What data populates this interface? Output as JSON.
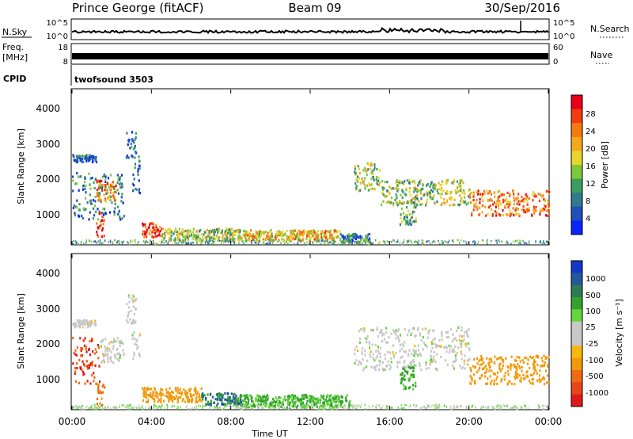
{
  "header": {
    "site": "Prince George (fitACF)",
    "beam": "Beam 09",
    "date": "30/Sep/2016"
  },
  "strips": {
    "nsky_label": "N.Sky",
    "nsky_ticks": [
      "10^5",
      "10^0"
    ],
    "nsearch_label": "N.Search",
    "nsearch_ticks": [
      "10^5",
      "10^0"
    ],
    "freq_label_line1": "Freq.",
    "freq_label_line2": "[MHz]",
    "freq_ticks": [
      "18",
      "8"
    ],
    "nave_label": "Nave",
    "nave_ticks": [
      "60",
      "0"
    ],
    "cpid_label": "CPID",
    "cpid_value": "twofsound 3503"
  },
  "axes": {
    "ylabel": "Slant Range [km]",
    "yticks": [
      "4000",
      "3000",
      "2000",
      "1000"
    ],
    "xticks": [
      "00:00",
      "04:00",
      "08:00",
      "12:00",
      "16:00",
      "20:00",
      "00:00"
    ],
    "xlabel": "Time UT"
  },
  "colorbars": {
    "power": {
      "label": "Power [dB]",
      "ticks": [
        "28",
        "24",
        "20",
        "16",
        "12",
        "8",
        "4"
      ],
      "colors": [
        "#e8001a",
        "#f03c0f",
        "#f27a0f",
        "#f4a81e",
        "#e8d52c",
        "#7ec93a",
        "#3b9e60",
        "#2f7a8e",
        "#1f4fb8",
        "#0a24ff"
      ]
    },
    "velocity": {
      "label": "Velocity [m s⁻¹]",
      "ticks": [
        "1000",
        "500",
        "100",
        "25",
        "-25",
        "-100",
        "-500",
        "-1000"
      ],
      "colors": [
        "#1537c7",
        "#23599a",
        "#2f7a52",
        "#33a22d",
        "#63d63a",
        "#c8c8c8",
        "#c8c8c8",
        "#f6b80e",
        "#f39a0b",
        "#f06a12",
        "#e8461c",
        "#e01a1a"
      ]
    }
  },
  "chart_data": [
    {
      "type": "heatmap",
      "title": "Power",
      "xlabel": "Time UT",
      "ylabel": "Slant Range [km]",
      "xlim": [
        "00:00",
        "24:00"
      ],
      "ylim": [
        180,
        4500
      ],
      "colorbar": {
        "label": "Power [dB]",
        "range": [
          0,
          30
        ]
      },
      "echo_bands": [
        {
          "t_start": 0.0,
          "t_end": 2.6,
          "range_lo": 900,
          "range_hi": 2200,
          "power_db": 8
        },
        {
          "t_start": 0.0,
          "t_end": 1.2,
          "range_lo": 2500,
          "range_hi": 2700,
          "power_db": 6
        },
        {
          "t_start": 1.2,
          "t_end": 2.2,
          "range_lo": 1400,
          "range_hi": 2000,
          "power_db": 22
        },
        {
          "t_start": 1.2,
          "t_end": 1.6,
          "range_lo": 400,
          "range_hi": 1100,
          "power_db": 28
        },
        {
          "t_start": 2.7,
          "t_end": 3.2,
          "range_lo": 2600,
          "range_hi": 3400,
          "power_db": 6
        },
        {
          "t_start": 3.0,
          "t_end": 3.4,
          "range_lo": 1600,
          "range_hi": 2700,
          "power_db": 6
        },
        {
          "t_start": 3.5,
          "t_end": 4.5,
          "range_lo": 400,
          "range_hi": 800,
          "power_db": 26
        },
        {
          "t_start": 4.5,
          "t_end": 8.5,
          "range_lo": 300,
          "range_hi": 650,
          "power_db": 14
        },
        {
          "t_start": 8.5,
          "t_end": 13.5,
          "range_lo": 300,
          "range_hi": 600,
          "power_db": 18
        },
        {
          "t_start": 13.5,
          "t_end": 15.0,
          "range_lo": 250,
          "range_hi": 500,
          "power_db": 8
        },
        {
          "t_start": 14.2,
          "t_end": 15.5,
          "range_lo": 1700,
          "range_hi": 2500,
          "power_db": 14
        },
        {
          "t_start": 15.5,
          "t_end": 20.0,
          "range_lo": 1300,
          "range_hi": 2000,
          "power_db": 14
        },
        {
          "t_start": 20.0,
          "t_end": 24.0,
          "range_lo": 1000,
          "range_hi": 1700,
          "power_db": 22
        },
        {
          "t_start": 16.5,
          "t_end": 17.3,
          "range_lo": 750,
          "range_hi": 1400,
          "power_db": 10
        }
      ]
    },
    {
      "type": "heatmap",
      "title": "Velocity",
      "xlabel": "Time UT",
      "ylabel": "Slant Range [km]",
      "xlim": [
        "00:00",
        "24:00"
      ],
      "ylim": [
        180,
        4500
      ],
      "colorbar": {
        "label": "Velocity [m s⁻¹]",
        "range": [
          -1000,
          1000
        ]
      },
      "echo_bands": [
        {
          "t_start": 0.0,
          "t_end": 1.4,
          "range_lo": 900,
          "range_hi": 2200,
          "velocity": -500
        },
        {
          "t_start": 1.4,
          "t_end": 2.6,
          "range_lo": 1500,
          "range_hi": 2200,
          "velocity": 0
        },
        {
          "t_start": 0.0,
          "t_end": 1.2,
          "range_lo": 2500,
          "range_hi": 2700,
          "velocity": 0
        },
        {
          "t_start": 2.7,
          "t_end": 3.2,
          "range_lo": 2600,
          "range_hi": 3400,
          "velocity": 0
        },
        {
          "t_start": 3.0,
          "t_end": 3.4,
          "range_lo": 1600,
          "range_hi": 2700,
          "velocity": 0
        },
        {
          "t_start": 1.2,
          "t_end": 1.6,
          "range_lo": 300,
          "range_hi": 900,
          "velocity": -300
        },
        {
          "t_start": 3.5,
          "t_end": 6.5,
          "range_lo": 400,
          "range_hi": 800,
          "velocity": -200
        },
        {
          "t_start": 6.5,
          "t_end": 8.5,
          "range_lo": 300,
          "range_hi": 650,
          "velocity": 100
        },
        {
          "t_start": 8.5,
          "t_end": 14.0,
          "range_lo": 250,
          "range_hi": 600,
          "velocity": 60
        },
        {
          "t_start": 14.2,
          "t_end": 20.0,
          "range_lo": 1300,
          "range_hi": 2500,
          "velocity": 0
        },
        {
          "t_start": 20.0,
          "t_end": 24.0,
          "range_lo": 900,
          "range_hi": 1700,
          "velocity": -200
        },
        {
          "t_start": 16.5,
          "t_end": 17.3,
          "range_lo": 750,
          "range_hi": 1400,
          "velocity": 60
        }
      ]
    }
  ]
}
